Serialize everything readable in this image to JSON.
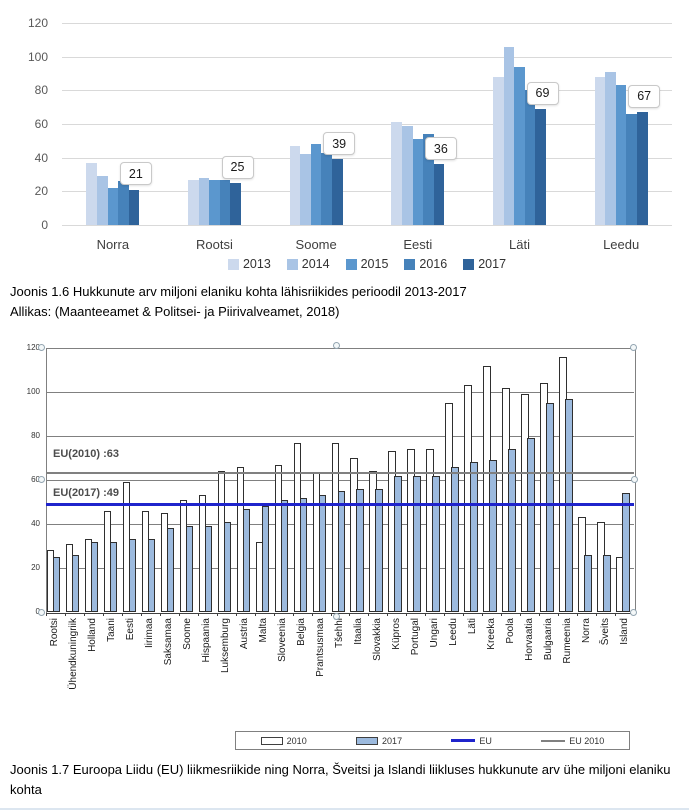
{
  "figure1": {
    "caption_line1": "Joonis 1.6 Hukkunute arv miljoni elaniku kohta lähisriikides perioodil 2013-2017",
    "caption_line2": "Allikas: (Maanteeamet & Politsei- ja Piirivalveamet, 2018)"
  },
  "figure2": {
    "caption": "Joonis 1.7 Euroopa Liidu (EU) liikmesriikide ning Norra, Šveitsi ja Islandi liikluses hukkunute arv ühe miljoni elaniku kohta"
  },
  "chart_data": [
    {
      "type": "bar",
      "title": "",
      "categories": [
        "Norra",
        "Rootsi",
        "Soome",
        "Eesti",
        "Läti",
        "Leedu"
      ],
      "series": [
        {
          "name": "2013",
          "color": "#ccd9ed",
          "values": [
            37,
            27,
            47,
            61,
            88,
            88
          ]
        },
        {
          "name": "2014",
          "color": "#a9c4e5",
          "values": [
            29,
            28,
            42,
            59,
            106,
            91
          ]
        },
        {
          "name": "2015",
          "color": "#5b97ce",
          "values": [
            22,
            27,
            48,
            51,
            94,
            83
          ]
        },
        {
          "name": "2016",
          "color": "#4682ba",
          "values": [
            26,
            27,
            43,
            54,
            80,
            66
          ]
        },
        {
          "name": "2017",
          "color": "#2f639a",
          "values": [
            21,
            25,
            39,
            36,
            69,
            67
          ]
        }
      ],
      "data_labels": {
        "series": "2017",
        "values": [
          "21",
          "25",
          "39",
          "36",
          "69",
          "67"
        ]
      },
      "ylim": [
        0,
        120
      ],
      "yticks": [
        0,
        20,
        40,
        60,
        80,
        100,
        120
      ],
      "grid": true,
      "legend_position": "bottom"
    },
    {
      "type": "bar",
      "title": "",
      "categories": [
        "Rootsi",
        "Ühendkuningriik",
        "Holland",
        "Taani",
        "Eesti",
        "Iirimaa",
        "Saksamaa",
        "Soome",
        "Hispaania",
        "Luksemburg",
        "Austria",
        "Malta",
        "Sloveenia",
        "Belgia",
        "Prantsusmaa",
        "Tšehhi",
        "Itaalia",
        "Slovakkia",
        "Küpros",
        "Portugal",
        "Ungari",
        "Leedu",
        "Läti",
        "Kreeka",
        "Poola",
        "Horvaatia",
        "Bulgaaria",
        "Rumeenia",
        "Norra",
        "Šveits",
        "Island"
      ],
      "series": [
        {
          "name": "2010",
          "color": "#ffffff",
          "values": [
            28,
            31,
            33,
            46,
            59,
            46,
            45,
            51,
            53,
            64,
            66,
            32,
            67,
            77,
            63,
            77,
            70,
            64,
            73,
            74,
            74,
            95,
            103,
            112,
            102,
            99,
            104,
            116,
            43,
            41,
            25
          ]
        },
        {
          "name": "2017",
          "color": "#9cbade",
          "values": [
            25,
            26,
            32,
            32,
            33,
            33,
            38,
            39,
            39,
            41,
            47,
            48,
            51,
            52,
            53,
            55,
            56,
            56,
            62,
            62,
            62,
            66,
            68,
            69,
            74,
            79,
            95,
            97,
            26,
            26,
            54
          ]
        }
      ],
      "reference_lines": [
        {
          "name": "EU 2010",
          "label": "EU(2010) :63",
          "value": 63,
          "color": "#808080"
        },
        {
          "name": "EU",
          "label": "EU(2017) :49",
          "value": 49,
          "color": "#1f24cc"
        }
      ],
      "legend": [
        {
          "label": "2010",
          "swatch": "bar-white"
        },
        {
          "label": "2017",
          "swatch": "bar-blue"
        },
        {
          "label": "EU",
          "swatch": "line-blue"
        },
        {
          "label": "EU 2010",
          "swatch": "line-gray"
        }
      ],
      "ylim": [
        0,
        120
      ],
      "yticks": [
        0,
        20,
        40,
        60,
        80,
        100,
        120
      ],
      "grid": true,
      "legend_position": "bottom"
    }
  ]
}
